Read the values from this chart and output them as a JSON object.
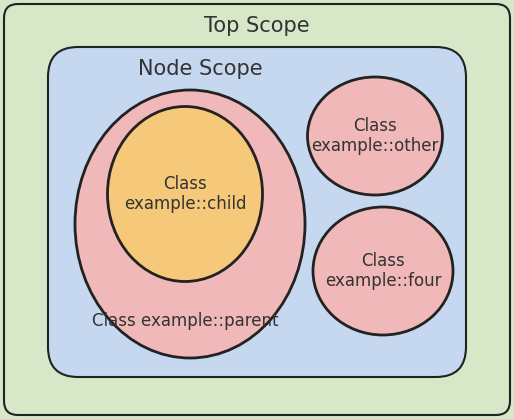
{
  "title_top": "Top Scope",
  "title_node": "Node Scope",
  "title_parent": "Class example::parent",
  "title_child": "Class\nexample::child",
  "title_other": "Class\nexample::other",
  "title_four": "Class\nexample::four",
  "bg_top": "#d6e8c8",
  "bg_node": "#c5d8f0",
  "color_parent": "#f0b8b8",
  "color_child": "#f5c87a",
  "color_other": "#f0b8b8",
  "color_four": "#f0b8b8",
  "edge_color": "#222222",
  "text_color": "#333333",
  "title_fontsize": 15,
  "label_fontsize": 12
}
